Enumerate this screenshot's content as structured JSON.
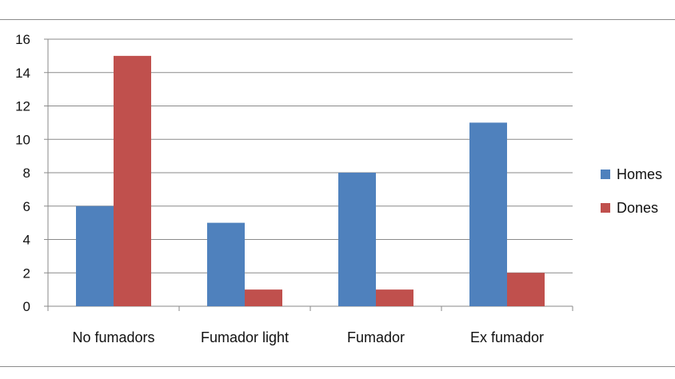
{
  "chart_data": {
    "type": "bar",
    "categories": [
      "No fumadors",
      "Fumador light",
      "Fumador",
      "Ex fumador"
    ],
    "series": [
      {
        "name": "Homes",
        "values": [
          6,
          5,
          8,
          11
        ],
        "color": "#4f81bd"
      },
      {
        "name": "Dones",
        "values": [
          15,
          1,
          1,
          2
        ],
        "color": "#c0504d"
      }
    ],
    "title": "",
    "xlabel": "",
    "ylabel": "",
    "ylim": [
      0,
      16
    ],
    "yticks": [
      "0",
      "2",
      "4",
      "6",
      "8",
      "10",
      "12",
      "14",
      "16"
    ],
    "grid": true,
    "legend_position": "right"
  }
}
